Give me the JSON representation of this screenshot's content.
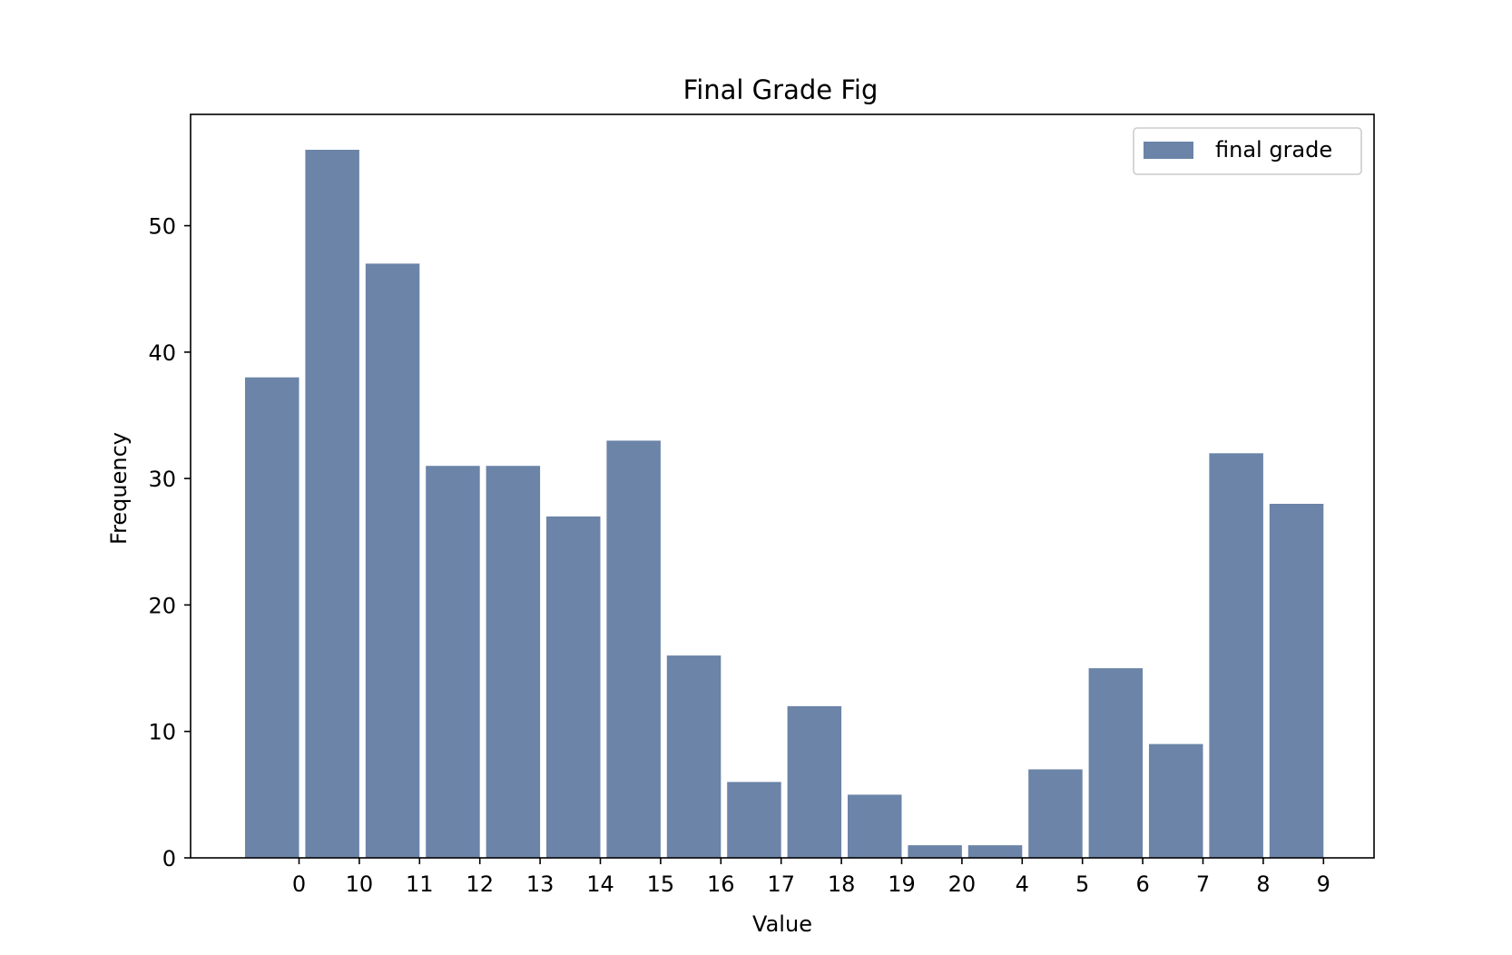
{
  "chart_data": {
    "type": "bar",
    "title": "Final Grade Fig",
    "xlabel": "Value",
    "ylabel": "Frequency",
    "categories": [
      "0",
      "10",
      "11",
      "12",
      "13",
      "14",
      "15",
      "16",
      "17",
      "18",
      "19",
      "20",
      "4",
      "5",
      "6",
      "7",
      "8",
      "9"
    ],
    "series": [
      {
        "name": "final grade",
        "values": [
          38,
          56,
          47,
          31,
          31,
          27,
          33,
          16,
          6,
          12,
          5,
          1,
          1,
          7,
          15,
          9,
          32,
          28
        ]
      }
    ],
    "ylim": [
      0,
      58.8
    ],
    "yticks": [
      0,
      10,
      20,
      30,
      40,
      50
    ],
    "grid": false,
    "legend_position": "top-right",
    "bar_color": "#6b84a8"
  }
}
